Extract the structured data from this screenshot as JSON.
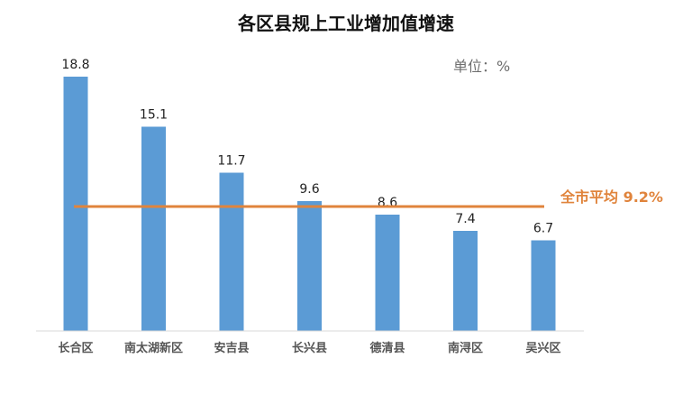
{
  "colors": {
    "bar": "#5b9bd5",
    "avg_line": "#e0843c",
    "axis": "#d9d9d9",
    "text": "#222222",
    "tick_text": "#555555",
    "unit_text": "#6e6e6e"
  },
  "chart_data": {
    "type": "bar",
    "title": "各区县规上工业增加值增速",
    "unit": "单位：%",
    "categories": [
      "长合区",
      "南太湖新区",
      "安吉县",
      "长兴县",
      "德清县",
      "南浔区",
      "吴兴区"
    ],
    "series": [
      {
        "values": [
          18.8,
          15.1,
          11.7,
          9.6,
          8.6,
          7.4,
          6.7
        ]
      }
    ],
    "reference_line": {
      "label": "全市平均 9.2%",
      "value": 9.2
    },
    "ylim": [
      0,
      18.8
    ],
    "grid": false,
    "data_labels": true
  }
}
